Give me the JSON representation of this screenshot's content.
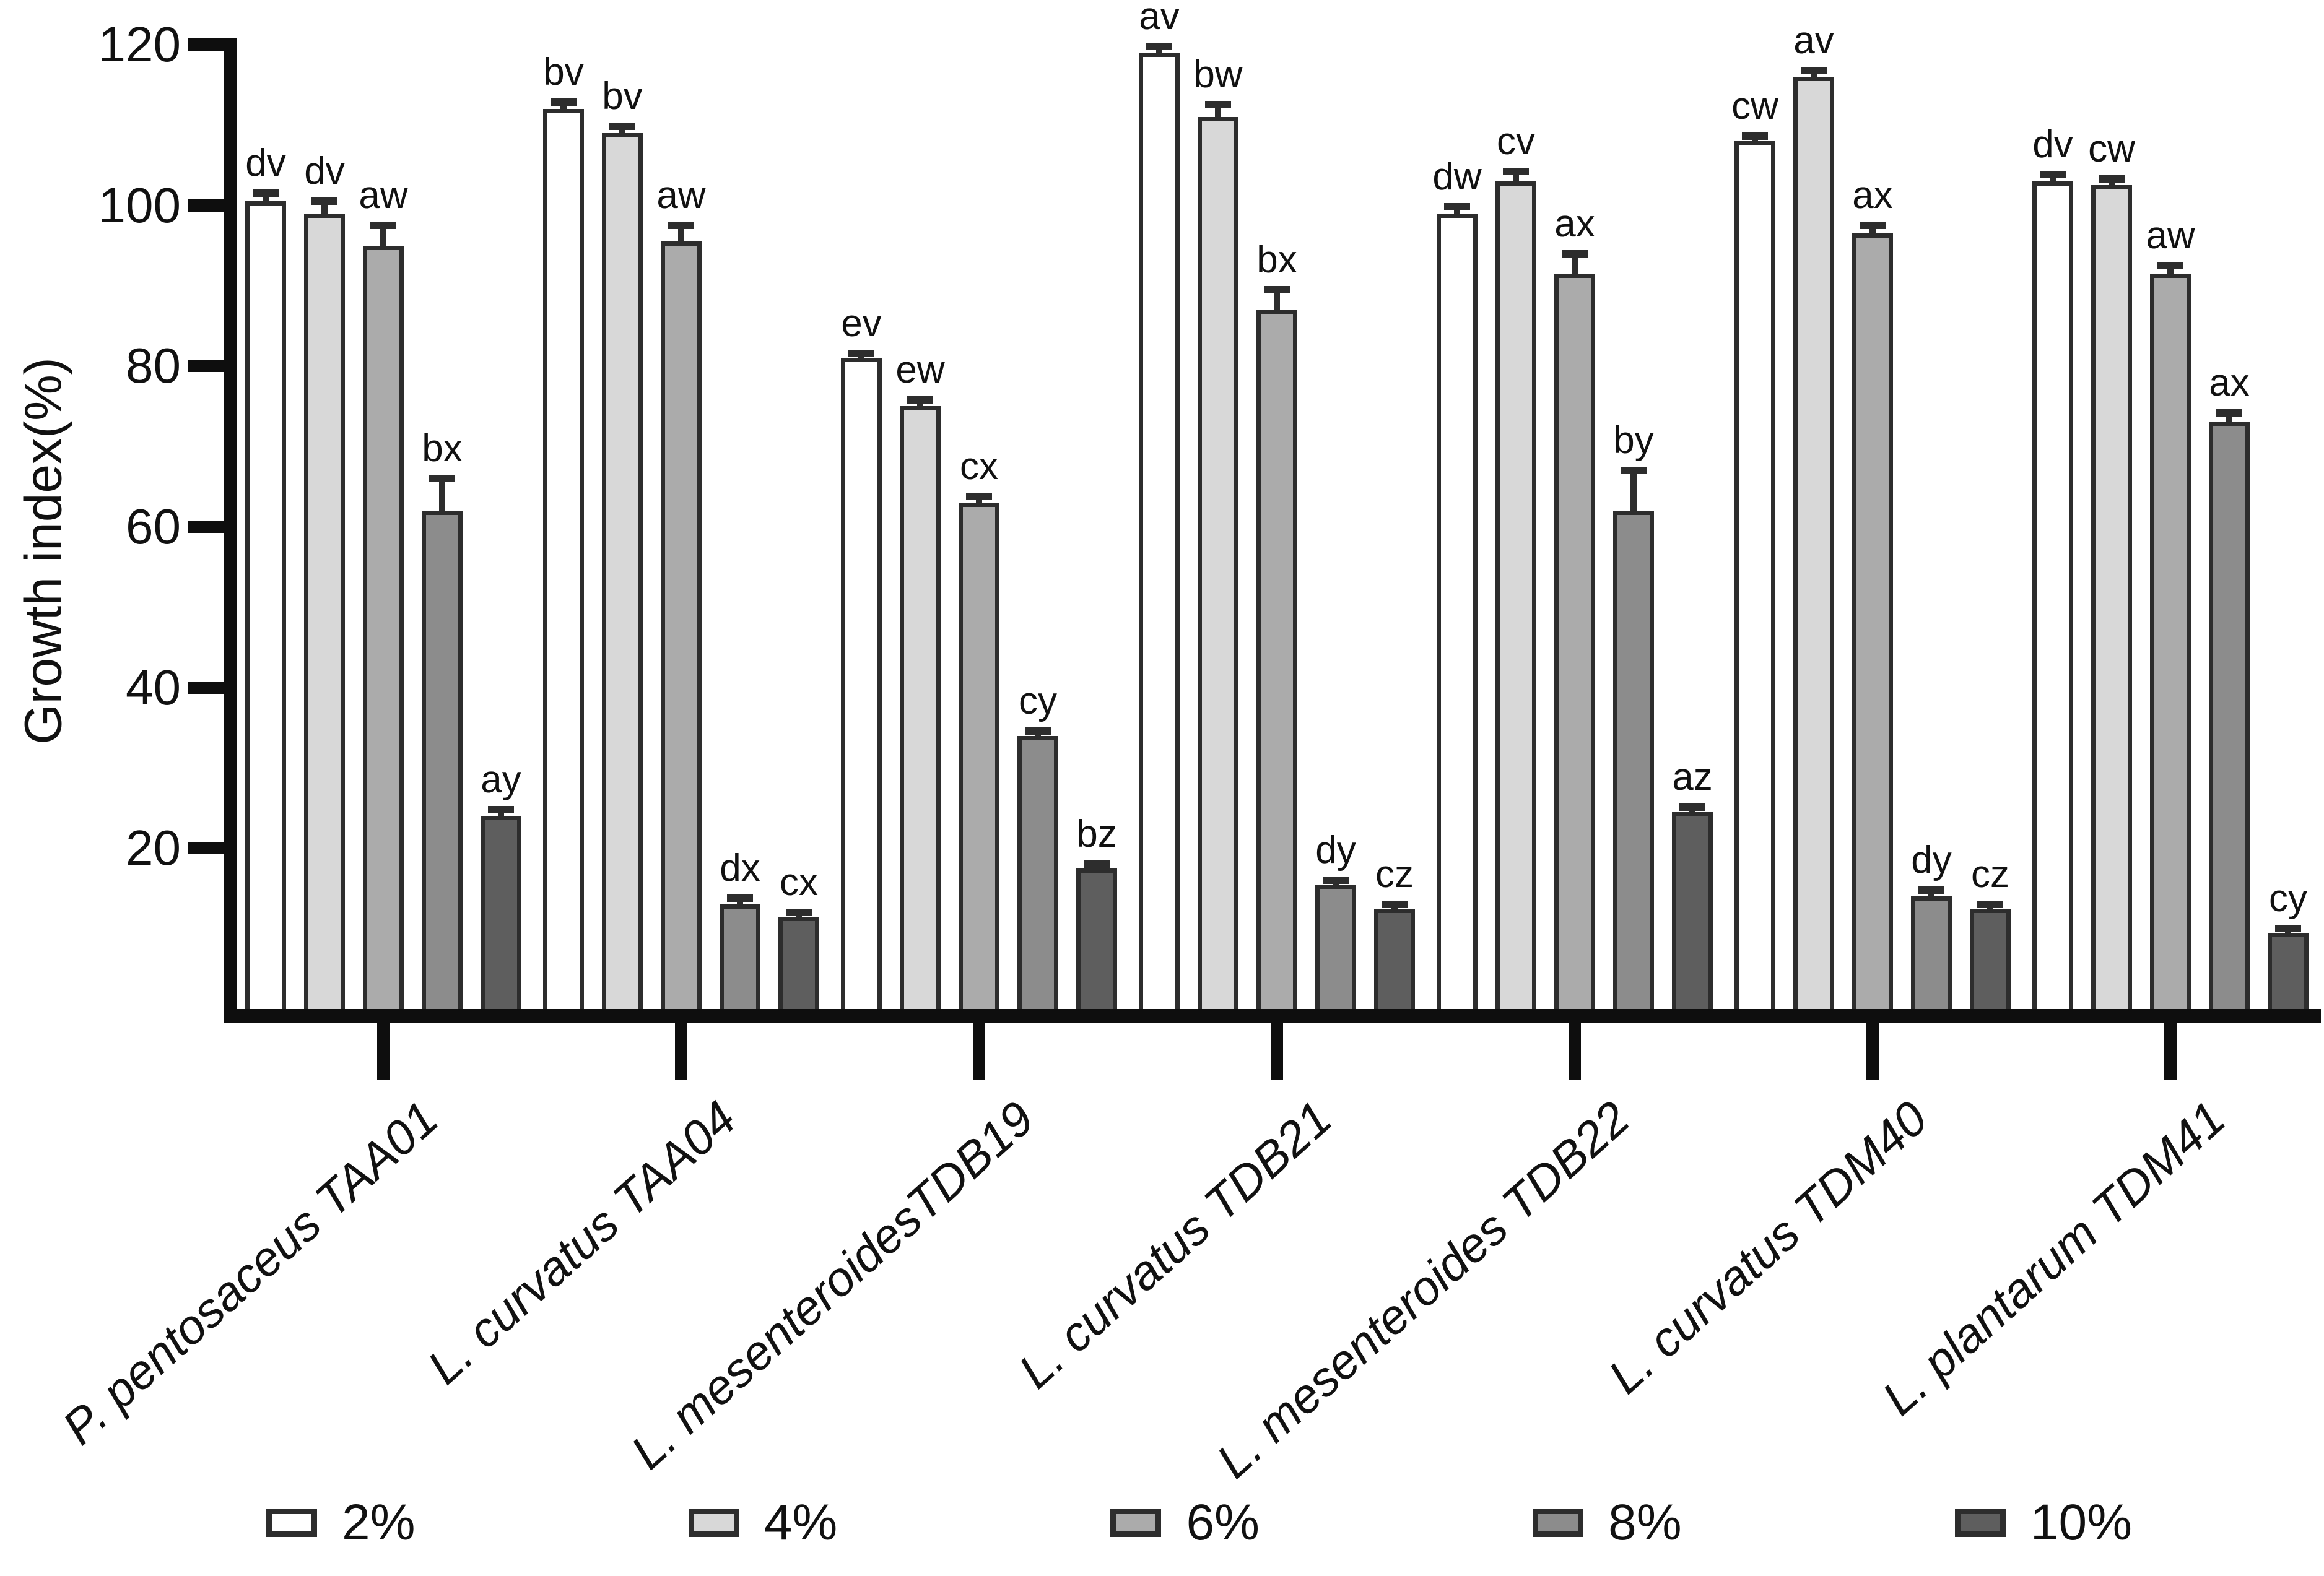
{
  "chart_data": {
    "type": "bar",
    "title": "",
    "xlabel": "",
    "ylabel": "Growth index(%)",
    "ylim": [
      0,
      120
    ],
    "yticks": [
      20,
      40,
      60,
      80,
      100,
      120
    ],
    "grid": false,
    "legend_position": "bottom",
    "categories": [
      "P. pentosaceus TAA01",
      "L. curvatus TAA04",
      "L. mesenteroidesTDB19",
      "L. curvatus TDB21",
      "L. mesenteroides TDB22",
      "L. curvatus TDM40",
      "L. plantarum TDM41"
    ],
    "series": [
      {
        "name": "2%",
        "color": "#ffffff",
        "values": [
          100.5,
          112,
          81,
          119,
          99,
          108,
          103
        ],
        "errors": [
          1,
          0.8,
          0.6,
          0.8,
          0.8,
          0.6,
          0.8
        ],
        "sig_letters": [
          "dv",
          "bv",
          "ev",
          "av",
          "dw",
          "cw",
          "dv"
        ]
      },
      {
        "name": "4%",
        "color": "#d8d8d8",
        "values": [
          99,
          109,
          75,
          111,
          103,
          116,
          102.5
        ],
        "errors": [
          1.5,
          0.8,
          0.8,
          1.5,
          1.2,
          0.8,
          0.8
        ],
        "sig_letters": [
          "dv",
          "bv",
          "ew",
          "bw",
          "cv",
          "av",
          "cw"
        ]
      },
      {
        "name": "6%",
        "color": "#ababab",
        "values": [
          95,
          95.5,
          63,
          87,
          91.5,
          96.5,
          91.5
        ],
        "errors": [
          2.5,
          2,
          0.8,
          2.5,
          2.5,
          1,
          1
        ],
        "sig_letters": [
          "aw",
          "aw",
          "cx",
          "bx",
          "ax",
          "ax",
          "aw"
        ]
      },
      {
        "name": "8%",
        "color": "#8c8c8c",
        "values": [
          62,
          13,
          34,
          15.5,
          62,
          14,
          73
        ],
        "errors": [
          4,
          0.8,
          0.6,
          0.5,
          5,
          0.8,
          1.2
        ],
        "sig_letters": [
          "bx",
          "dx",
          "cy",
          "dy",
          "by",
          "dy",
          "ax"
        ]
      },
      {
        "name": "10%",
        "color": "#5e5e5e",
        "values": [
          24,
          11.5,
          17.5,
          12.5,
          24.5,
          12.5,
          9.5
        ],
        "errors": [
          0.8,
          0.5,
          0.5,
          0.5,
          0.6,
          0.5,
          0.5
        ],
        "sig_letters": [
          "ay",
          "cx",
          "bz",
          "cz",
          "az",
          "cz",
          "cy"
        ]
      }
    ],
    "colors": {
      "axis_ink": "#0e0e0e",
      "bar_border": "#2d2d2d",
      "text": "#111111"
    }
  }
}
